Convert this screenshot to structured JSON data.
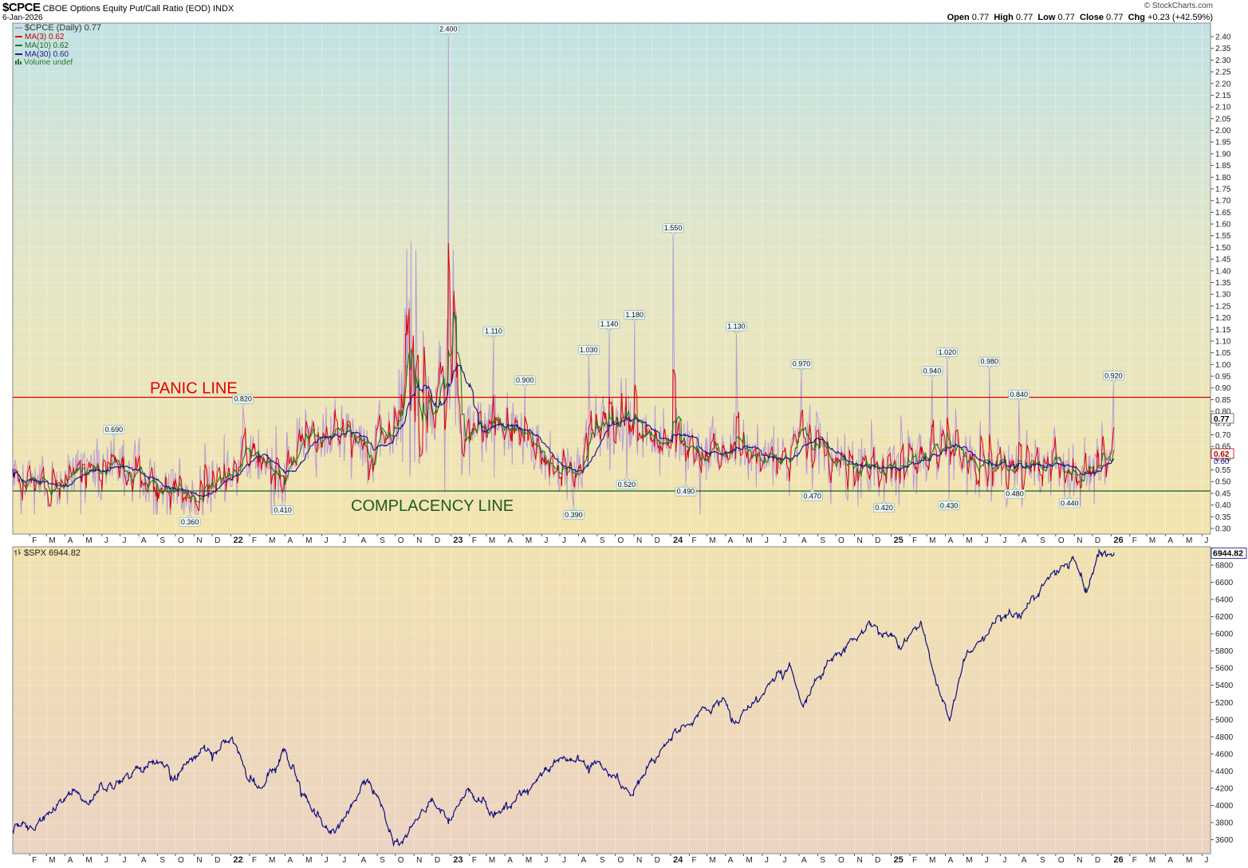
{
  "header": {
    "symbol": "$CPCE",
    "description": "CBOE Options Equity Put/Call Ratio (EOD)",
    "exchange": "INDX",
    "date": "6-Jan-2026",
    "open_label": "Open",
    "open_value": "0.77",
    "high_label": "High",
    "high_value": "0.77",
    "low_label": "Low",
    "low_value": "0.77",
    "close_label": "Close",
    "close_value": "0.77",
    "chg_label": "Chg",
    "chg_value": "+0.23 (+42.59%)",
    "watermark": "© StockCharts.com"
  },
  "legend": {
    "cpce": "$CPCE (Daily) 0.77",
    "ma3": "MA(3) 0.62",
    "ma10": "MA(10) 0.62",
    "ma30": "MA(30) 0.60",
    "volume": "Volume undef",
    "spx": "$SPX 6944.82"
  },
  "colors": {
    "cpce": "#b99ad3",
    "ma3": "#e00000",
    "ma10": "#1e7a1e",
    "ma30": "#1a1a8c",
    "spx": "#0d0d80",
    "panic": "#e00000",
    "complacency": "#1d5c1d"
  },
  "annotations": {
    "panic_line": "PANIC LINE",
    "complacency_line": "COMPLACENCY LINE"
  },
  "chart_data": [
    {
      "type": "line",
      "name": "$CPCE",
      "ylim": [
        0.27,
        2.45
      ],
      "yticks": [
        "2.40",
        "2.35",
        "2.30",
        "2.25",
        "2.20",
        "2.15",
        "2.10",
        "2.05",
        "2.00",
        "1.95",
        "1.90",
        "1.85",
        "1.80",
        "1.75",
        "1.70",
        "1.65",
        "1.60",
        "1.55",
        "1.50",
        "1.45",
        "1.40",
        "1.35",
        "1.30",
        "1.25",
        "1.20",
        "1.15",
        "1.10",
        "1.05",
        "1.00",
        "0.95",
        "0.90",
        "0.85",
        "0.80",
        "0.75",
        "0.70",
        "0.65",
        "0.60",
        "0.55",
        "0.50",
        "0.45",
        "0.40",
        "0.35",
        "0.30"
      ],
      "panic_level": 0.86,
      "complacency_level": 0.46,
      "last_value": "0.77",
      "ma_last_value": "0.62",
      "ma_prev_value": "0.60",
      "peaks": [
        {
          "date": "2021-06-21",
          "value": 0.69,
          "label": "0.690",
          "pos": "above"
        },
        {
          "date": "2021-10-25",
          "value": 0.36,
          "label": "0.360",
          "pos": "below"
        },
        {
          "date": "2022-01-22",
          "value": 0.82,
          "label": "0.820",
          "pos": "above"
        },
        {
          "date": "2022-03-28",
          "value": 0.41,
          "label": "0.410",
          "pos": "below"
        },
        {
          "date": "2022-12-28",
          "value": 2.4,
          "label": "2.400",
          "pos": "above"
        },
        {
          "date": "2023-03-13",
          "value": 1.11,
          "label": "1.110",
          "pos": "above"
        },
        {
          "date": "2023-05-04",
          "value": 0.9,
          "label": "0.900",
          "pos": "above"
        },
        {
          "date": "2023-07-24",
          "value": 0.39,
          "label": "0.390",
          "pos": "below"
        },
        {
          "date": "2023-08-18",
          "value": 1.03,
          "label": "1.030",
          "pos": "above"
        },
        {
          "date": "2023-09-21",
          "value": 1.14,
          "label": "1.140",
          "pos": "above"
        },
        {
          "date": "2023-10-20",
          "value": 0.52,
          "label": "0.520",
          "pos": "below"
        },
        {
          "date": "2023-11-02",
          "value": 1.18,
          "label": "1.180",
          "pos": "above"
        },
        {
          "date": "2024-01-05",
          "value": 1.55,
          "label": "1.550",
          "pos": "above"
        },
        {
          "date": "2024-01-26",
          "value": 0.49,
          "label": "0.490",
          "pos": "below"
        },
        {
          "date": "2024-04-19",
          "value": 1.13,
          "label": "1.130",
          "pos": "above"
        },
        {
          "date": "2024-08-05",
          "value": 0.97,
          "label": "0.970",
          "pos": "above"
        },
        {
          "date": "2024-08-23",
          "value": 0.47,
          "label": "0.470",
          "pos": "below"
        },
        {
          "date": "2024-12-20",
          "value": 0.42,
          "label": "0.420",
          "pos": "below"
        },
        {
          "date": "2025-03-10",
          "value": 0.94,
          "label": "0.940",
          "pos": "above"
        },
        {
          "date": "2025-04-04",
          "value": 1.02,
          "label": "1.020",
          "pos": "above"
        },
        {
          "date": "2025-04-07",
          "value": 0.43,
          "label": "0.430",
          "pos": "below"
        },
        {
          "date": "2025-06-13",
          "value": 0.98,
          "label": "0.980",
          "pos": "above"
        },
        {
          "date": "2025-07-25",
          "value": 0.48,
          "label": "0.480",
          "pos": "below"
        },
        {
          "date": "2025-08-01",
          "value": 0.84,
          "label": "0.840",
          "pos": "above"
        },
        {
          "date": "2025-10-24",
          "value": 0.44,
          "label": "0.440",
          "pos": "below"
        },
        {
          "date": "2026-01-05",
          "value": 0.92,
          "label": "0.920",
          "pos": "above"
        }
      ],
      "anchors": [
        {
          "date": "2021-01-15",
          "value": 0.48
        },
        {
          "date": "2021-03-01",
          "value": 0.47
        },
        {
          "date": "2021-05-01",
          "value": 0.52
        },
        {
          "date": "2021-06-21",
          "value": 0.55
        },
        {
          "date": "2021-08-15",
          "value": 0.5
        },
        {
          "date": "2021-09-15",
          "value": 0.48
        },
        {
          "date": "2021-10-25",
          "value": 0.44
        },
        {
          "date": "2021-12-01",
          "value": 0.5
        },
        {
          "date": "2022-01-22",
          "value": 0.62
        },
        {
          "date": "2022-03-01",
          "value": 0.56
        },
        {
          "date": "2022-03-28",
          "value": 0.5
        },
        {
          "date": "2022-05-10",
          "value": 0.7
        },
        {
          "date": "2022-06-15",
          "value": 0.72
        },
        {
          "date": "2022-08-15",
          "value": 0.62
        },
        {
          "date": "2022-10-01",
          "value": 0.78
        },
        {
          "date": "2022-11-15",
          "value": 0.75
        },
        {
          "date": "2022-12-28",
          "value": 1.0
        },
        {
          "date": "2023-01-20",
          "value": 0.7
        },
        {
          "date": "2023-03-13",
          "value": 0.72
        },
        {
          "date": "2023-05-04",
          "value": 0.7
        },
        {
          "date": "2023-06-15",
          "value": 0.58
        },
        {
          "date": "2023-07-24",
          "value": 0.5
        },
        {
          "date": "2023-09-01",
          "value": 0.75
        },
        {
          "date": "2023-10-15",
          "value": 0.78
        },
        {
          "date": "2023-12-01",
          "value": 0.66
        },
        {
          "date": "2024-01-15",
          "value": 0.68
        },
        {
          "date": "2024-03-01",
          "value": 0.62
        },
        {
          "date": "2024-05-01",
          "value": 0.64
        },
        {
          "date": "2024-07-01",
          "value": 0.58
        },
        {
          "date": "2024-08-05",
          "value": 0.66
        },
        {
          "date": "2024-09-15",
          "value": 0.62
        },
        {
          "date": "2024-11-01",
          "value": 0.56
        },
        {
          "date": "2025-01-01",
          "value": 0.55
        },
        {
          "date": "2025-03-01",
          "value": 0.6
        },
        {
          "date": "2025-04-07",
          "value": 0.66
        },
        {
          "date": "2025-05-15",
          "value": 0.58
        },
        {
          "date": "2025-07-01",
          "value": 0.56
        },
        {
          "date": "2025-08-15",
          "value": 0.58
        },
        {
          "date": "2025-10-01",
          "value": 0.58
        },
        {
          "date": "2025-10-24",
          "value": 0.54
        },
        {
          "date": "2025-12-01",
          "value": 0.6
        },
        {
          "date": "2026-01-06",
          "value": 0.62
        }
      ]
    },
    {
      "type": "line",
      "name": "$SPX",
      "ylim": [
        3500,
        6960
      ],
      "yticks": [
        "6800",
        "6600",
        "6400",
        "6200",
        "6000",
        "5800",
        "5600",
        "5400",
        "5200",
        "5000",
        "4800",
        "4600",
        "4400",
        "4200",
        "4000",
        "3800",
        "3600"
      ],
      "last_value": "6944.82",
      "points": [
        {
          "date": "2021-01-04",
          "value": 3700
        },
        {
          "date": "2021-01-29",
          "value": 3714
        },
        {
          "date": "2021-03-01",
          "value": 3900
        },
        {
          "date": "2021-04-15",
          "value": 4170
        },
        {
          "date": "2021-05-12",
          "value": 4063
        },
        {
          "date": "2021-06-30",
          "value": 4297
        },
        {
          "date": "2021-08-31",
          "value": 4522
        },
        {
          "date": "2021-10-04",
          "value": 4300
        },
        {
          "date": "2021-11-18",
          "value": 4705
        },
        {
          "date": "2021-12-01",
          "value": 4513
        },
        {
          "date": "2022-01-03",
          "value": 4796
        },
        {
          "date": "2022-01-27",
          "value": 4326
        },
        {
          "date": "2022-02-24",
          "value": 4225
        },
        {
          "date": "2022-03-29",
          "value": 4631
        },
        {
          "date": "2022-05-20",
          "value": 3900
        },
        {
          "date": "2022-06-16",
          "value": 3666
        },
        {
          "date": "2022-08-16",
          "value": 4305
        },
        {
          "date": "2022-09-30",
          "value": 3585
        },
        {
          "date": "2022-10-12",
          "value": 3577
        },
        {
          "date": "2022-12-01",
          "value": 4080
        },
        {
          "date": "2022-12-28",
          "value": 3783
        },
        {
          "date": "2023-02-02",
          "value": 4179
        },
        {
          "date": "2023-03-13",
          "value": 3855
        },
        {
          "date": "2023-04-30",
          "value": 4169
        },
        {
          "date": "2023-06-15",
          "value": 4425
        },
        {
          "date": "2023-07-31",
          "value": 4589
        },
        {
          "date": "2023-08-18",
          "value": 4370
        },
        {
          "date": "2023-09-01",
          "value": 4515
        },
        {
          "date": "2023-10-27",
          "value": 4117
        },
        {
          "date": "2023-12-29",
          "value": 4770
        },
        {
          "date": "2024-02-15",
          "value": 5030
        },
        {
          "date": "2024-03-28",
          "value": 5254
        },
        {
          "date": "2024-04-19",
          "value": 4967
        },
        {
          "date": "2024-05-31",
          "value": 5278
        },
        {
          "date": "2024-07-16",
          "value": 5667
        },
        {
          "date": "2024-08-05",
          "value": 5186
        },
        {
          "date": "2024-09-30",
          "value": 5762
        },
        {
          "date": "2024-11-11",
          "value": 6001
        },
        {
          "date": "2024-12-06",
          "value": 6090
        },
        {
          "date": "2025-01-13",
          "value": 5836
        },
        {
          "date": "2025-02-19",
          "value": 6144
        },
        {
          "date": "2025-03-13",
          "value": 5521
        },
        {
          "date": "2025-04-08",
          "value": 4982
        },
        {
          "date": "2025-05-02",
          "value": 5686
        },
        {
          "date": "2025-06-30",
          "value": 6205
        },
        {
          "date": "2025-08-01",
          "value": 6238
        },
        {
          "date": "2025-09-30",
          "value": 6688
        },
        {
          "date": "2025-10-28",
          "value": 6890
        },
        {
          "date": "2025-11-20",
          "value": 6538
        },
        {
          "date": "2025-12-11",
          "value": 6901
        },
        {
          "date": "2026-01-06",
          "value": 6944.82
        }
      ]
    }
  ],
  "x_axis": {
    "labels": [
      {
        "date": "2021-02-01",
        "label": "F"
      },
      {
        "date": "2021-03-01",
        "label": "M"
      },
      {
        "date": "2021-04-01",
        "label": "A"
      },
      {
        "date": "2021-05-01",
        "label": "M"
      },
      {
        "date": "2021-06-01",
        "label": "J"
      },
      {
        "date": "2021-07-01",
        "label": "J"
      },
      {
        "date": "2021-08-01",
        "label": "A"
      },
      {
        "date": "2021-09-01",
        "label": "S"
      },
      {
        "date": "2021-10-01",
        "label": "O"
      },
      {
        "date": "2021-11-01",
        "label": "N"
      },
      {
        "date": "2021-12-01",
        "label": "D"
      },
      {
        "date": "2022-01-01",
        "label": "22",
        "bold": true
      },
      {
        "date": "2022-02-01",
        "label": "F"
      },
      {
        "date": "2022-03-01",
        "label": "M"
      },
      {
        "date": "2022-04-01",
        "label": "A"
      },
      {
        "date": "2022-05-01",
        "label": "M"
      },
      {
        "date": "2022-06-01",
        "label": "J"
      },
      {
        "date": "2022-07-01",
        "label": "J"
      },
      {
        "date": "2022-08-01",
        "label": "A"
      },
      {
        "date": "2022-09-01",
        "label": "S"
      },
      {
        "date": "2022-10-01",
        "label": "O"
      },
      {
        "date": "2022-11-01",
        "label": "N"
      },
      {
        "date": "2022-12-01",
        "label": "D"
      },
      {
        "date": "2023-01-01",
        "label": "23",
        "bold": true
      },
      {
        "date": "2023-02-01",
        "label": "F"
      },
      {
        "date": "2023-03-01",
        "label": "M"
      },
      {
        "date": "2023-04-01",
        "label": "A"
      },
      {
        "date": "2023-05-01",
        "label": "M"
      },
      {
        "date": "2023-06-01",
        "label": "J"
      },
      {
        "date": "2023-07-01",
        "label": "J"
      },
      {
        "date": "2023-08-01",
        "label": "A"
      },
      {
        "date": "2023-09-01",
        "label": "S"
      },
      {
        "date": "2023-10-01",
        "label": "O"
      },
      {
        "date": "2023-11-01",
        "label": "N"
      },
      {
        "date": "2023-12-01",
        "label": "D"
      },
      {
        "date": "2024-01-01",
        "label": "24",
        "bold": true
      },
      {
        "date": "2024-02-01",
        "label": "F"
      },
      {
        "date": "2024-03-01",
        "label": "M"
      },
      {
        "date": "2024-04-01",
        "label": "A"
      },
      {
        "date": "2024-05-01",
        "label": "M"
      },
      {
        "date": "2024-06-01",
        "label": "J"
      },
      {
        "date": "2024-07-01",
        "label": "J"
      },
      {
        "date": "2024-08-01",
        "label": "A"
      },
      {
        "date": "2024-09-01",
        "label": "S"
      },
      {
        "date": "2024-10-01",
        "label": "O"
      },
      {
        "date": "2024-11-01",
        "label": "N"
      },
      {
        "date": "2024-12-01",
        "label": "D"
      },
      {
        "date": "2025-01-01",
        "label": "25",
        "bold": true
      },
      {
        "date": "2025-02-01",
        "label": "F"
      },
      {
        "date": "2025-03-01",
        "label": "M"
      },
      {
        "date": "2025-04-01",
        "label": "A"
      },
      {
        "date": "2025-05-01",
        "label": "M"
      },
      {
        "date": "2025-06-01",
        "label": "J"
      },
      {
        "date": "2025-07-01",
        "label": "J"
      },
      {
        "date": "2025-08-01",
        "label": "A"
      },
      {
        "date": "2025-09-01",
        "label": "S"
      },
      {
        "date": "2025-10-01",
        "label": "O"
      },
      {
        "date": "2025-11-01",
        "label": "N"
      },
      {
        "date": "2025-12-01",
        "label": "D"
      },
      {
        "date": "2026-01-01",
        "label": "26",
        "bold": true
      },
      {
        "date": "2026-02-01",
        "label": "F"
      },
      {
        "date": "2026-03-01",
        "label": "M"
      },
      {
        "date": "2026-04-01",
        "label": "A"
      },
      {
        "date": "2026-05-01",
        "label": "M"
      },
      {
        "date": "2026-06-01",
        "label": "J"
      }
    ]
  }
}
